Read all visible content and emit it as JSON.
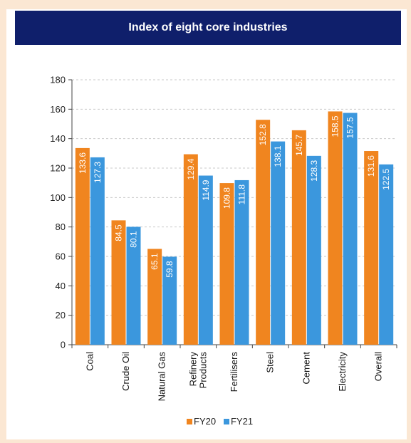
{
  "colors": {
    "title_bg": "#0f1f6b",
    "fy20": "#f0851f",
    "fy21": "#3b97dd",
    "background": "#fbe7d3"
  },
  "chart_data": {
    "type": "bar",
    "title": "Index of eight core industries",
    "categories": [
      "Coal",
      "Crude Oil",
      "Natural Gas",
      "Refinery Products",
      "Fertilisers",
      "Steel",
      "Cement",
      "Electricity",
      "Overall"
    ],
    "category_lines": [
      [
        "Coal"
      ],
      [
        "Crude Oil"
      ],
      [
        "Natural Gas"
      ],
      [
        "Refinery",
        "Products"
      ],
      [
        "Fertilisers"
      ],
      [
        "Steel"
      ],
      [
        "Cement"
      ],
      [
        "Electricity"
      ],
      [
        "Overall"
      ]
    ],
    "series": [
      {
        "name": "FY20",
        "color": "#f0851f",
        "values": [
          133.6,
          84.5,
          65.1,
          129.4,
          109.8,
          152.8,
          145.7,
          158.5,
          131.6
        ]
      },
      {
        "name": "FY21",
        "color": "#3b97dd",
        "values": [
          127.3,
          80.1,
          59.8,
          114.9,
          111.8,
          138.1,
          128.3,
          157.5,
          122.5
        ]
      }
    ],
    "data_labels": [
      [
        "133.6",
        "84.5",
        "65.1",
        "129.4",
        "109.8",
        "152.8",
        "145.7",
        "158.5",
        "131.6"
      ],
      [
        "127.3",
        "80.1",
        "59.8",
        "114.9",
        "111.8",
        "138.1",
        "128.3",
        "157.5",
        "122.5"
      ]
    ],
    "ylim": [
      0,
      180
    ],
    "yticks": [
      0,
      20,
      40,
      60,
      80,
      100,
      120,
      140,
      160,
      180
    ],
    "grid": true,
    "legend": "bottom",
    "xlabel": "",
    "ylabel": ""
  }
}
